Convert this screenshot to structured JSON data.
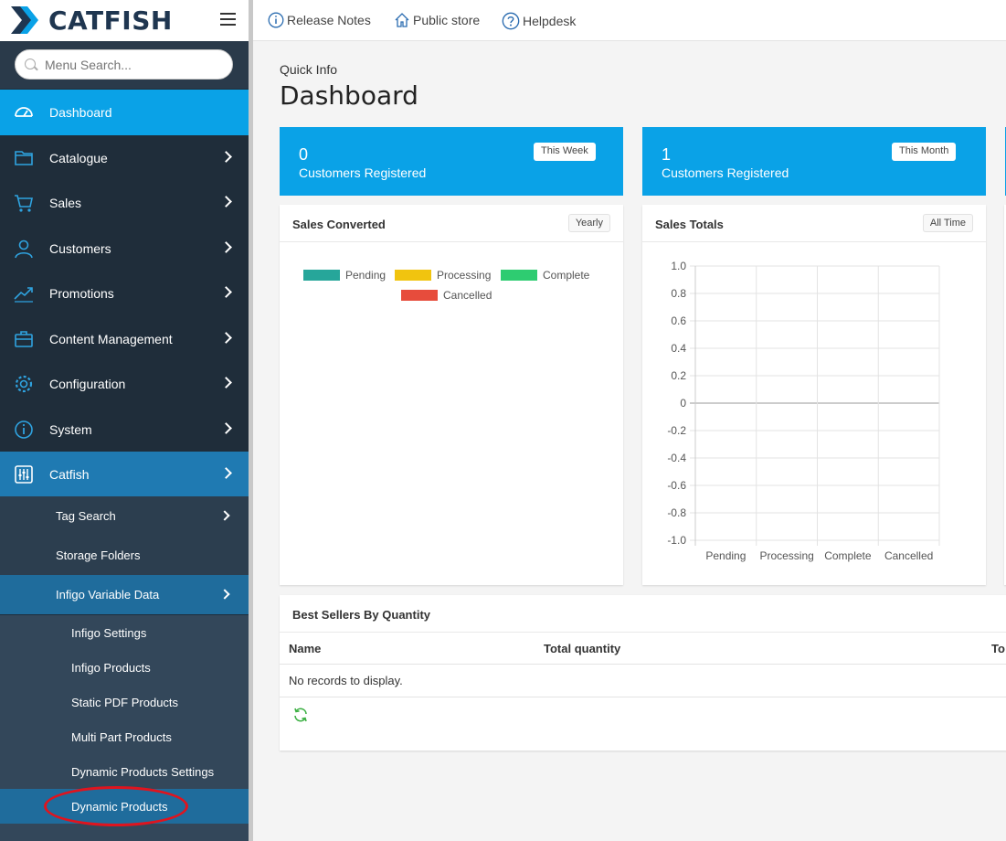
{
  "app": {
    "logo_text": "CATFISH"
  },
  "search": {
    "placeholder": "Menu Search..."
  },
  "sidebar": {
    "items": [
      {
        "label": "Dashboard",
        "icon": "dashboard-icon"
      },
      {
        "label": "Catalogue",
        "icon": "folder-icon"
      },
      {
        "label": "Sales",
        "icon": "cart-icon"
      },
      {
        "label": "Customers",
        "icon": "user-icon"
      },
      {
        "label": "Promotions",
        "icon": "chart-line-icon"
      },
      {
        "label": "Content Management",
        "icon": "briefcase-icon"
      },
      {
        "label": "Configuration",
        "icon": "gear-icon"
      },
      {
        "label": "System",
        "icon": "info-icon"
      },
      {
        "label": "Catfish",
        "icon": "sliders-icon"
      }
    ],
    "catfish_sub": [
      {
        "label": "Tag Search"
      },
      {
        "label": "Storage Folders"
      },
      {
        "label": "Infigo Variable Data"
      }
    ],
    "infigo_sub": [
      {
        "label": "Infigo Settings"
      },
      {
        "label": "Infigo Products"
      },
      {
        "label": "Static PDF Products"
      },
      {
        "label": "Multi Part Products"
      },
      {
        "label": "Dynamic Products Settings"
      },
      {
        "label": "Dynamic Products"
      }
    ]
  },
  "topbar": {
    "links": [
      {
        "label": "Release Notes",
        "icon": "info-circle-icon"
      },
      {
        "label": "Public store",
        "icon": "home-icon"
      },
      {
        "label": "Helpdesk",
        "icon": "question-circle-icon"
      }
    ]
  },
  "main": {
    "subtitle": "Quick Info",
    "title": "Dashboard",
    "stats": [
      {
        "value": "0",
        "label": "Customers Registered",
        "badge": "This Week"
      },
      {
        "value": "1",
        "label": "Customers Registered",
        "badge": "This Month"
      }
    ],
    "sales_converted": {
      "title": "Sales Converted",
      "badge": "Yearly",
      "legend": [
        {
          "label": "Pending",
          "color": "#26a69a"
        },
        {
          "label": "Processing",
          "color": "#f1c40f"
        },
        {
          "label": "Complete",
          "color": "#2ecc71"
        },
        {
          "label": "Cancelled",
          "color": "#e74c3c"
        }
      ]
    },
    "sales_totals": {
      "title": "Sales Totals",
      "badge": "All Time"
    },
    "best_sellers": {
      "title": "Best Sellers By Quantity",
      "columns": [
        "Name",
        "Total quantity",
        "To"
      ],
      "empty": "No records to display."
    }
  },
  "chart_data": {
    "type": "bar",
    "categories": [
      "Pending",
      "Processing",
      "Complete",
      "Cancelled"
    ],
    "values": [
      0,
      0,
      0,
      0
    ],
    "yticks": [
      "1.0",
      "0.8",
      "0.6",
      "0.4",
      "0.2",
      "0",
      "-0.2",
      "-0.4",
      "-0.6",
      "-0.8",
      "-1.0"
    ],
    "ylim": [
      -1.0,
      1.0
    ],
    "grid": true
  }
}
